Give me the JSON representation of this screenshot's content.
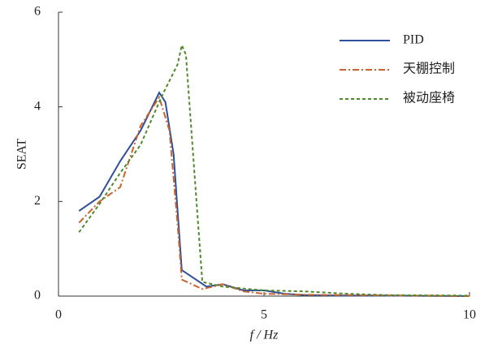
{
  "chart_data": {
    "type": "line",
    "x_label": "f / Hz",
    "y_label": "SEAT",
    "xlim": [
      0,
      10
    ],
    "xticks": [
      0,
      5,
      10
    ],
    "ylim": [
      0,
      6
    ],
    "yticks": [
      0,
      2,
      4,
      6
    ],
    "legend": "top-right",
    "series": [
      {
        "name": "PID",
        "color": "#2f4f9a",
        "dash": "solid",
        "x": [
          0.5,
          1.0,
          1.5,
          2.0,
          2.45,
          2.6,
          2.8,
          3.0,
          3.6,
          4.0,
          4.5,
          5.0,
          5.5,
          6.0,
          7.0,
          8.0,
          10.0
        ],
        "values": [
          1.8,
          2.1,
          2.85,
          3.5,
          4.3,
          4.1,
          3.0,
          0.55,
          0.2,
          0.25,
          0.12,
          0.12,
          0.05,
          0.02,
          0.01,
          0.01,
          0.0
        ]
      },
      {
        "name": "天棚控制",
        "color": "#c8642a",
        "dash": "dashdot",
        "x": [
          0.5,
          1.0,
          1.5,
          2.0,
          2.45,
          2.7,
          2.9,
          3.0,
          3.5,
          4.0,
          4.5,
          5.0,
          6.0,
          7.0,
          10.0
        ],
        "values": [
          1.55,
          2.0,
          2.3,
          3.6,
          4.2,
          3.5,
          1.5,
          0.35,
          0.15,
          0.25,
          0.1,
          0.05,
          0.03,
          0.02,
          0.0
        ]
      },
      {
        "name": "被动座椅",
        "color": "#4e8a2c",
        "dash": "dashed",
        "x": [
          0.5,
          1.0,
          1.5,
          2.0,
          2.5,
          2.9,
          3.0,
          3.1,
          3.4,
          3.5,
          4.0,
          5.0,
          6.0,
          7.0,
          8.0,
          10.0
        ],
        "values": [
          1.35,
          1.95,
          2.6,
          3.2,
          4.2,
          4.9,
          5.3,
          5.1,
          1.5,
          0.3,
          0.2,
          0.12,
          0.1,
          0.05,
          0.02,
          0.01
        ]
      }
    ]
  }
}
